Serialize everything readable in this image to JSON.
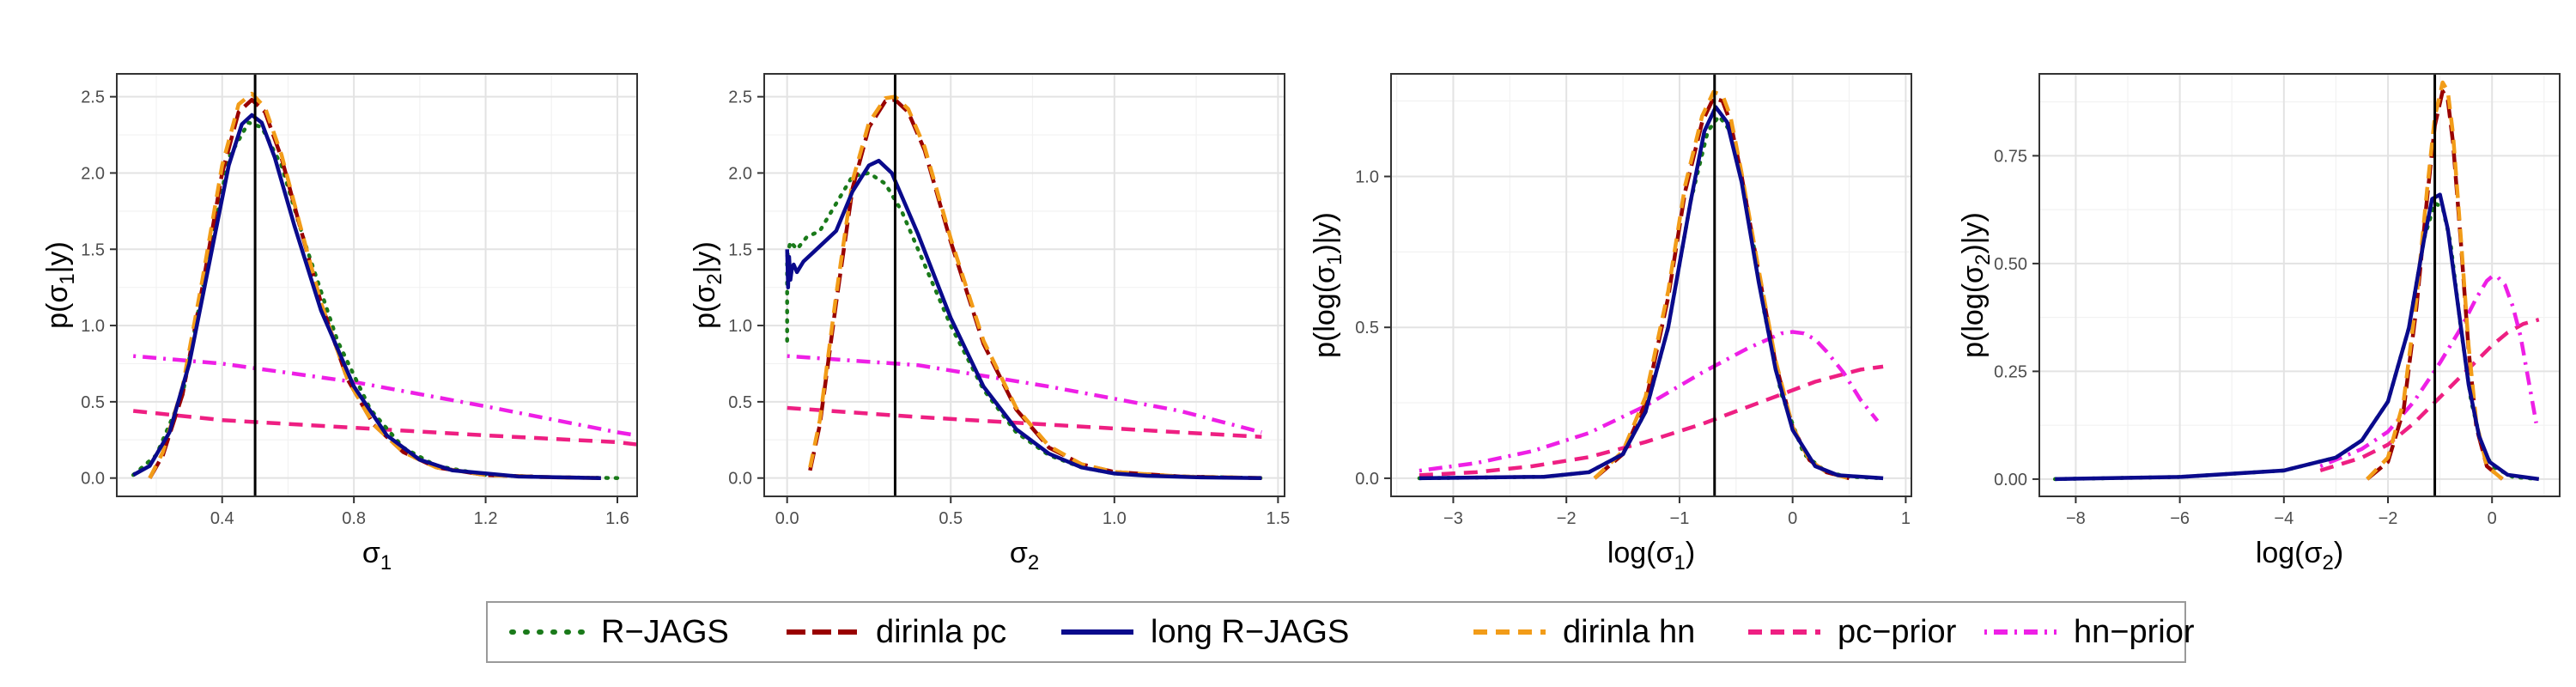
{
  "chart_data": [
    {
      "type": "line",
      "xlabel": "σ1",
      "ylabel": "p(σ1|y)",
      "xlim": [
        0.08,
        1.66
      ],
      "ylim": [
        -0.12,
        2.65
      ],
      "xticks": [
        0.4,
        0.8,
        1.2,
        1.6
      ],
      "xtick_labels": [
        "0.4",
        "0.8",
        "1.2",
        "1.6"
      ],
      "yticks": [
        0,
        0.5,
        1,
        1.5,
        2,
        2.5
      ],
      "ytick_labels": [
        "0.0",
        "0.5",
        "1.0",
        "1.5",
        "2.0",
        "2.5"
      ],
      "vline": 0.5,
      "grid": true,
      "series": [
        {
          "name": "R−JAGS",
          "x": [
            0.13,
            0.2,
            0.28,
            0.35,
            0.42,
            0.48,
            0.52,
            0.58,
            0.65,
            0.75,
            0.85,
            0.95,
            1.05,
            1.2,
            1.4,
            1.6
          ],
          "y": [
            0.02,
            0.15,
            0.55,
            1.35,
            2.1,
            2.33,
            2.3,
            2.05,
            1.55,
            0.9,
            0.45,
            0.2,
            0.08,
            0.02,
            0.005,
            0.0
          ]
        },
        {
          "name": "dirinla pc",
          "x": [
            0.18,
            0.22,
            0.28,
            0.34,
            0.4,
            0.45,
            0.49,
            0.53,
            0.58,
            0.64,
            0.7,
            0.78,
            0.86,
            0.95,
            1.05,
            1.2,
            1.4,
            1.55
          ],
          "y": [
            0.0,
            0.15,
            0.55,
            1.25,
            2.0,
            2.4,
            2.48,
            2.4,
            2.1,
            1.62,
            1.15,
            0.65,
            0.35,
            0.17,
            0.07,
            0.02,
            0.005,
            0.0
          ]
        },
        {
          "name": "long R−JAGS",
          "x": [
            0.13,
            0.18,
            0.24,
            0.3,
            0.36,
            0.42,
            0.46,
            0.49,
            0.52,
            0.56,
            0.62,
            0.7,
            0.8,
            0.9,
            1.0,
            1.1,
            1.3,
            1.55
          ],
          "y": [
            0.02,
            0.08,
            0.3,
            0.75,
            1.4,
            2.05,
            2.32,
            2.38,
            2.33,
            2.1,
            1.65,
            1.1,
            0.6,
            0.28,
            0.12,
            0.05,
            0.01,
            0.0
          ]
        },
        {
          "name": "dirinla hn",
          "x": [
            0.18,
            0.22,
            0.28,
            0.34,
            0.4,
            0.45,
            0.49,
            0.53,
            0.58,
            0.64,
            0.7,
            0.78,
            0.86,
            0.95,
            1.05,
            1.2,
            1.4,
            1.55
          ],
          "y": [
            0.0,
            0.17,
            0.6,
            1.3,
            2.05,
            2.45,
            2.52,
            2.43,
            2.12,
            1.63,
            1.15,
            0.65,
            0.35,
            0.17,
            0.07,
            0.02,
            0.005,
            0.0
          ]
        },
        {
          "name": "pc−prior",
          "x": [
            0.13,
            0.4,
            0.8,
            1.2,
            1.6,
            1.66
          ],
          "y": [
            0.44,
            0.38,
            0.33,
            0.28,
            0.235,
            0.22
          ]
        },
        {
          "name": "hn−prior",
          "x": [
            0.13,
            0.4,
            0.8,
            1.2,
            1.6,
            1.66
          ],
          "y": [
            0.8,
            0.75,
            0.63,
            0.47,
            0.3,
            0.28
          ]
        }
      ]
    },
    {
      "type": "line",
      "xlabel": "σ2",
      "ylabel": "p(σ2|y)",
      "xlim": [
        -0.07,
        1.52
      ],
      "ylim": [
        -0.12,
        2.65
      ],
      "xticks": [
        0.0,
        0.5,
        1.0,
        1.5
      ],
      "xtick_labels": [
        "0.0",
        "0.5",
        "1.0",
        "1.5"
      ],
      "yticks": [
        0,
        0.5,
        1,
        1.5,
        2,
        2.5
      ],
      "ytick_labels": [
        "0.0",
        "0.5",
        "1.0",
        "1.5",
        "2.0",
        "2.5"
      ],
      "vline": 0.33,
      "grid": true,
      "series": [
        {
          "name": "R−JAGS",
          "x": [
            0.0,
            0.0,
            0.01,
            0.03,
            0.06,
            0.1,
            0.15,
            0.2,
            0.25,
            0.3,
            0.35,
            0.4,
            0.5,
            0.6,
            0.7,
            0.8,
            0.9,
            1.0,
            1.2,
            1.45
          ],
          "y": [
            0.9,
            1.45,
            1.55,
            1.5,
            1.58,
            1.62,
            1.8,
            1.98,
            2.0,
            1.93,
            1.75,
            1.5,
            1.0,
            0.58,
            0.3,
            0.15,
            0.07,
            0.03,
            0.01,
            0.0
          ]
        },
        {
          "name": "dirinla pc",
          "x": [
            0.07,
            0.1,
            0.15,
            0.2,
            0.25,
            0.3,
            0.33,
            0.37,
            0.42,
            0.5,
            0.6,
            0.7,
            0.8,
            0.9,
            1.0,
            1.2,
            1.45
          ],
          "y": [
            0.05,
            0.35,
            1.15,
            1.9,
            2.3,
            2.47,
            2.48,
            2.4,
            2.15,
            1.55,
            0.88,
            0.45,
            0.2,
            0.09,
            0.04,
            0.01,
            0.0
          ]
        },
        {
          "name": "long R−JAGS",
          "x": [
            0.0,
            0.003,
            0.006,
            0.01,
            0.015,
            0.02,
            0.03,
            0.05,
            0.08,
            0.1,
            0.15,
            0.2,
            0.25,
            0.28,
            0.32,
            0.4,
            0.5,
            0.6,
            0.7,
            0.8,
            0.9,
            1.0,
            1.1,
            1.25,
            1.45
          ],
          "y": [
            1.5,
            1.25,
            1.45,
            1.3,
            1.38,
            1.4,
            1.35,
            1.42,
            1.48,
            1.52,
            1.62,
            1.88,
            2.05,
            2.08,
            2.0,
            1.6,
            1.05,
            0.6,
            0.32,
            0.16,
            0.07,
            0.03,
            0.015,
            0.005,
            0.0
          ]
        },
        {
          "name": "dirinla hn",
          "x": [
            0.07,
            0.1,
            0.15,
            0.2,
            0.25,
            0.3,
            0.33,
            0.37,
            0.42,
            0.5,
            0.6,
            0.7,
            0.8,
            0.9,
            1.0,
            1.2,
            1.45
          ],
          "y": [
            0.07,
            0.38,
            1.2,
            1.95,
            2.33,
            2.49,
            2.5,
            2.42,
            2.17,
            1.57,
            0.9,
            0.46,
            0.21,
            0.09,
            0.04,
            0.01,
            0.0
          ]
        },
        {
          "name": "pc−prior",
          "x": [
            0.0,
            0.4,
            0.8,
            1.2,
            1.45
          ],
          "y": [
            0.46,
            0.4,
            0.35,
            0.3,
            0.27
          ]
        },
        {
          "name": "hn−prior",
          "x": [
            0.0,
            0.4,
            0.8,
            1.2,
            1.45
          ],
          "y": [
            0.8,
            0.74,
            0.6,
            0.44,
            0.3
          ]
        }
      ]
    },
    {
      "type": "line",
      "xlabel": "log(σ1)",
      "ylabel": "p(log(σ1)|y)",
      "xlim": [
        -3.55,
        1.05
      ],
      "ylim": [
        -0.06,
        1.34
      ],
      "xticks": [
        -3,
        -2,
        -1,
        0,
        1
      ],
      "xtick_labels": [
        "−3",
        "−2",
        "−1",
        "0",
        "1"
      ],
      "yticks": [
        0,
        0.5,
        1.0
      ],
      "ytick_labels": [
        "0.0",
        "0.5",
        "1.0"
      ],
      "vline": -0.69,
      "grid": true,
      "series": [
        {
          "name": "R−JAGS",
          "x": [
            -3.3,
            -2.2,
            -1.8,
            -1.5,
            -1.3,
            -1.1,
            -0.9,
            -0.75,
            -0.65,
            -0.55,
            -0.4,
            -0.25,
            -0.1,
            0.1,
            0.3,
            0.5,
            0.8
          ],
          "y": [
            0.0,
            0.005,
            0.02,
            0.08,
            0.22,
            0.5,
            0.92,
            1.15,
            1.2,
            1.15,
            0.9,
            0.55,
            0.28,
            0.08,
            0.02,
            0.005,
            0.0
          ]
        },
        {
          "name": "dirinla pc",
          "x": [
            -1.75,
            -1.5,
            -1.3,
            -1.1,
            -0.95,
            -0.8,
            -0.7,
            -0.62,
            -0.55,
            -0.45,
            -0.3,
            -0.15,
            0.0,
            0.15,
            0.3,
            0.5
          ],
          "y": [
            0.0,
            0.08,
            0.25,
            0.6,
            0.95,
            1.18,
            1.26,
            1.25,
            1.18,
            1.0,
            0.68,
            0.38,
            0.17,
            0.06,
            0.02,
            0.0
          ]
        },
        {
          "name": "long R−JAGS",
          "x": [
            -3.3,
            -2.2,
            -1.8,
            -1.5,
            -1.3,
            -1.1,
            -0.9,
            -0.78,
            -0.68,
            -0.58,
            -0.45,
            -0.3,
            -0.15,
            0.0,
            0.2,
            0.4,
            0.8
          ],
          "y": [
            0.0,
            0.005,
            0.02,
            0.08,
            0.22,
            0.5,
            0.92,
            1.15,
            1.23,
            1.18,
            0.98,
            0.65,
            0.36,
            0.16,
            0.04,
            0.01,
            0.0
          ]
        },
        {
          "name": "dirinla hn",
          "x": [
            -1.75,
            -1.5,
            -1.3,
            -1.1,
            -0.95,
            -0.8,
            -0.7,
            -0.62,
            -0.55,
            -0.45,
            -0.3,
            -0.15,
            0.0,
            0.15,
            0.3,
            0.5
          ],
          "y": [
            0.0,
            0.09,
            0.27,
            0.62,
            0.97,
            1.2,
            1.28,
            1.27,
            1.2,
            1.01,
            0.69,
            0.39,
            0.17,
            0.06,
            0.02,
            0.0
          ]
        },
        {
          "name": "pc−prior",
          "x": [
            -3.3,
            -2.8,
            -2.3,
            -1.8,
            -1.3,
            -0.8,
            -0.3,
            0.2,
            0.6,
            0.8
          ],
          "y": [
            0.01,
            0.02,
            0.04,
            0.07,
            0.12,
            0.18,
            0.25,
            0.32,
            0.36,
            0.37
          ]
        },
        {
          "name": "hn−prior",
          "x": [
            -3.3,
            -2.8,
            -2.3,
            -1.8,
            -1.3,
            -0.8,
            -0.4,
            -0.1,
            0.0,
            0.1,
            0.2,
            0.3,
            0.45,
            0.6,
            0.75
          ],
          "y": [
            0.025,
            0.05,
            0.09,
            0.15,
            0.24,
            0.35,
            0.43,
            0.48,
            0.485,
            0.48,
            0.46,
            0.42,
            0.35,
            0.26,
            0.19
          ]
        }
      ]
    },
    {
      "type": "line",
      "xlabel": "log(σ2)",
      "ylabel": "p(log(σ2)|y)",
      "xlim": [
        -8.7,
        1.3
      ],
      "ylim": [
        -0.04,
        0.94
      ],
      "xticks": [
        -8,
        -6,
        -4,
        -2,
        0
      ],
      "xtick_labels": [
        "−8",
        "−6",
        "−4",
        "−2",
        "0"
      ],
      "yticks": [
        0,
        0.25,
        0.5,
        0.75
      ],
      "ytick_labels": [
        "0.00",
        "0.25",
        "0.50",
        "0.75"
      ],
      "vline": -1.1,
      "grid": true,
      "series": [
        {
          "name": "R−JAGS",
          "x": [
            -8.4,
            -6,
            -4,
            -3,
            -2.5,
            -2,
            -1.6,
            -1.3,
            -1.1,
            -0.95,
            -0.8,
            -0.6,
            -0.4,
            -0.2,
            0.0,
            0.4,
            0.9
          ],
          "y": [
            0.0,
            0.005,
            0.02,
            0.05,
            0.09,
            0.18,
            0.35,
            0.56,
            0.64,
            0.63,
            0.55,
            0.35,
            0.18,
            0.08,
            0.03,
            0.005,
            0.0
          ]
        },
        {
          "name": "dirinla pc",
          "x": [
            -2.4,
            -2,
            -1.7,
            -1.45,
            -1.25,
            -1.1,
            -0.95,
            -0.85,
            -0.75,
            -0.6,
            -0.45,
            -0.3,
            -0.1,
            0.2
          ],
          "y": [
            0.0,
            0.04,
            0.16,
            0.4,
            0.65,
            0.82,
            0.9,
            0.88,
            0.78,
            0.55,
            0.3,
            0.12,
            0.03,
            0.0
          ]
        },
        {
          "name": "long R−JAGS",
          "x": [
            -8.4,
            -6,
            -4,
            -3,
            -2.5,
            -2,
            -1.6,
            -1.3,
            -1.15,
            -1.0,
            -0.85,
            -0.65,
            -0.45,
            -0.25,
            -0.05,
            0.3,
            0.9
          ],
          "y": [
            0.0,
            0.005,
            0.02,
            0.05,
            0.09,
            0.18,
            0.35,
            0.56,
            0.65,
            0.66,
            0.58,
            0.4,
            0.22,
            0.1,
            0.04,
            0.01,
            0.0
          ]
        },
        {
          "name": "dirinla hn",
          "x": [
            -2.4,
            -2,
            -1.7,
            -1.45,
            -1.25,
            -1.1,
            -0.95,
            -0.85,
            -0.75,
            -0.6,
            -0.45,
            -0.3,
            -0.1,
            0.2
          ],
          "y": [
            0.0,
            0.05,
            0.18,
            0.42,
            0.67,
            0.84,
            0.92,
            0.9,
            0.8,
            0.56,
            0.31,
            0.13,
            0.03,
            0.0
          ]
        },
        {
          "name": "pc−prior",
          "x": [
            -3.3,
            -2.5,
            -2,
            -1.5,
            -1,
            -0.5,
            0.0,
            0.3,
            0.6,
            0.9
          ],
          "y": [
            0.02,
            0.05,
            0.08,
            0.13,
            0.19,
            0.25,
            0.31,
            0.34,
            0.36,
            0.37
          ]
        },
        {
          "name": "hn−prior",
          "x": [
            -3.3,
            -2.5,
            -2,
            -1.5,
            -1,
            -0.6,
            -0.3,
            -0.1,
            0.0,
            0.1,
            0.25,
            0.4,
            0.55,
            0.7,
            0.85
          ],
          "y": [
            0.03,
            0.07,
            0.11,
            0.18,
            0.27,
            0.35,
            0.42,
            0.46,
            0.47,
            0.47,
            0.45,
            0.4,
            0.33,
            0.23,
            0.13
          ]
        }
      ]
    }
  ],
  "legend": [
    {
      "label": "R−JAGS",
      "color": "#1a7a1a",
      "dash": "dotted"
    },
    {
      "label": "dirinla pc",
      "color": "#990000",
      "dash": "longdash"
    },
    {
      "label": "long R−JAGS",
      "color": "#0a0a8c",
      "dash": "solid"
    },
    {
      "label": "dirinla hn",
      "color": "#f29c18",
      "dash": "dashed"
    },
    {
      "label": "pc−prior",
      "color": "#ee1f82",
      "dash": "dashed"
    },
    {
      "label": "hn−prior",
      "color": "#ee1fe6",
      "dash": "dotdash"
    }
  ]
}
